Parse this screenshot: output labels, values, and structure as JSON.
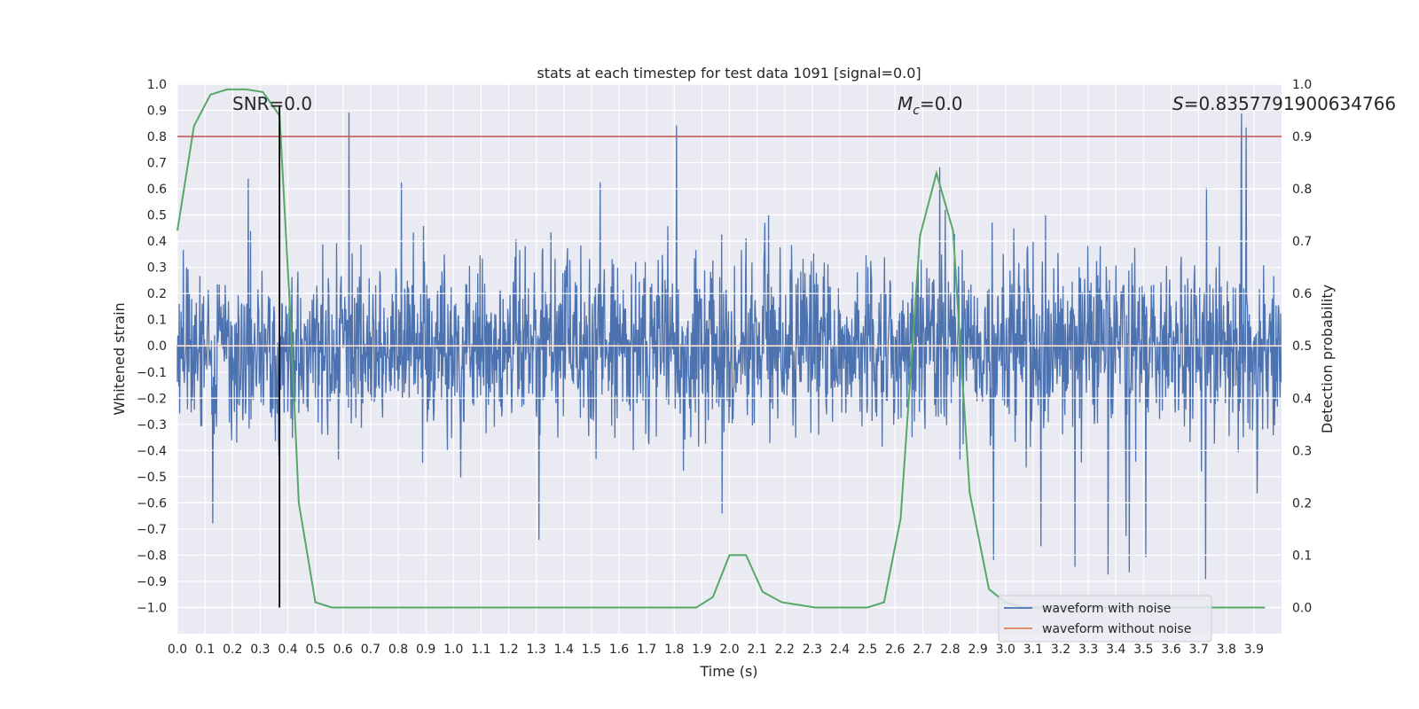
{
  "chart_data": {
    "type": "line",
    "title": "stats at each timestep for test data 1091 [signal=0.0]",
    "xlabel": "Time (s)",
    "ylabel": "Whitened strain",
    "y2label": "Detection probability",
    "xlim": [
      0.0,
      4.0
    ],
    "ylim": [
      -1.1,
      1.0
    ],
    "y2lim": [
      -0.05,
      1.0
    ],
    "xticks": [
      "0.0",
      "0.1",
      "0.2",
      "0.3",
      "0.4",
      "0.5",
      "0.6",
      "0.7",
      "0.8",
      "0.9",
      "1.0",
      "1.1",
      "1.2",
      "1.3",
      "1.4",
      "1.5",
      "1.6",
      "1.7",
      "1.8",
      "1.9",
      "2.0",
      "2.1",
      "2.2",
      "2.3",
      "2.4",
      "2.5",
      "2.6",
      "2.7",
      "2.8",
      "2.9",
      "3.0",
      "3.1",
      "3.2",
      "3.3",
      "3.4",
      "3.5",
      "3.6",
      "3.7",
      "3.8",
      "3.9"
    ],
    "yticks": [
      "1.0",
      "0.9",
      "0.8",
      "0.7",
      "0.6",
      "0.5",
      "0.4",
      "0.3",
      "0.2",
      "0.1",
      "0.0",
      "−0.1",
      "−0.2",
      "−0.3",
      "−0.4",
      "−0.5",
      "−0.6",
      "−0.7",
      "−0.8",
      "−0.9",
      "−1.0"
    ],
    "y2ticks": [
      "0.0",
      "0.1",
      "0.2",
      "0.3",
      "0.4",
      "0.5",
      "0.6",
      "0.7",
      "0.8",
      "0.9",
      "1.0"
    ],
    "grid": true,
    "legend_position": "lower-right",
    "series": [
      {
        "name": "waveform with noise",
        "color": "#4c72b0",
        "note": "dense noise, amplitude mostly within ±0.5 with spikes to ±0.9"
      },
      {
        "name": "waveform without noise",
        "color": "#dd8452",
        "values_constant": 0.0
      },
      {
        "color": "#55a868",
        "axis": "right",
        "x": [
          0.0,
          0.06,
          0.12,
          0.18,
          0.25,
          0.31,
          0.37,
          0.41,
          0.44,
          0.5,
          0.56,
          0.62,
          1.25,
          1.88,
          1.94,
          2.0,
          2.06,
          2.12,
          2.19,
          2.25,
          2.31,
          2.5,
          2.56,
          2.62,
          2.69,
          2.75,
          2.81,
          2.87,
          2.94,
          3.0,
          3.06,
          3.94
        ],
        "values": [
          0.72,
          0.92,
          0.98,
          0.99,
          0.99,
          0.985,
          0.94,
          0.55,
          0.2,
          0.01,
          0.0,
          0.0,
          0.0,
          0.0,
          0.02,
          0.1,
          0.1,
          0.03,
          0.01,
          0.005,
          0.0,
          0.0,
          0.01,
          0.17,
          0.71,
          0.83,
          0.72,
          0.22,
          0.035,
          0.01,
          0.0,
          0.0
        ]
      }
    ],
    "hlines": [
      {
        "y2": 0.9,
        "color": "#c44e52"
      }
    ],
    "vlines": [
      {
        "x": 0.37,
        "color": "#000000",
        "y_from": -1.0,
        "y_to": 0.92
      }
    ],
    "annotations": {
      "snr": "SNR=0.0",
      "mc_symbol": "M",
      "mc_sub": "c",
      "mc_value": "=0.0",
      "s_symbol": "S",
      "s_value": "=0.8357791900634766"
    }
  }
}
